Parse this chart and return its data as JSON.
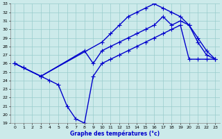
{
  "line1_x": [
    0,
    1,
    3,
    10,
    11,
    12,
    13,
    14,
    15,
    16,
    17,
    18,
    19,
    20,
    21,
    22,
    23
  ],
  "line1_y": [
    26,
    25.5,
    24.5,
    28.5,
    29.5,
    30.5,
    31.5,
    32.0,
    32.5,
    33.0,
    32.5,
    32.0,
    31.5,
    30.5,
    28.5,
    27.0,
    26.5
  ],
  "line2_x": [
    0,
    3,
    8,
    9,
    10,
    11,
    12,
    13,
    14,
    15,
    16,
    17,
    18,
    19,
    20,
    21,
    22,
    23
  ],
  "line2_y": [
    26.0,
    24.5,
    27.5,
    26.0,
    27.5,
    28.0,
    28.5,
    29.0,
    29.5,
    30.0,
    30.5,
    31.5,
    30.5,
    31.0,
    30.5,
    29.0,
    27.5,
    26.5
  ],
  "line3_x": [
    0,
    1,
    3,
    4,
    5,
    6,
    7,
    8,
    9,
    10,
    11,
    12,
    13,
    14,
    15,
    16,
    17,
    18,
    19,
    20,
    21,
    22,
    23
  ],
  "line3_y": [
    26.0,
    25.5,
    24.5,
    24.0,
    23.5,
    21.0,
    19.5,
    19.0,
    24.5,
    26.0,
    26.5,
    27.0,
    27.5,
    28.0,
    28.5,
    29.0,
    29.5,
    30.0,
    30.5,
    26.5,
    26.5,
    26.5,
    26.5
  ],
  "line_color": "#0000cc",
  "bg_color": "#cceaea",
  "grid_color": "#99cccc",
  "xlabel": "Graphe des températures (°c)",
  "ylim": [
    19,
    33
  ],
  "xlim": [
    -0.5,
    23.5
  ],
  "yticks": [
    19,
    20,
    21,
    22,
    23,
    24,
    25,
    26,
    27,
    28,
    29,
    30,
    31,
    32,
    33
  ],
  "xticks": [
    0,
    1,
    2,
    3,
    4,
    5,
    6,
    7,
    8,
    9,
    10,
    11,
    12,
    13,
    14,
    15,
    16,
    17,
    18,
    19,
    20,
    21,
    22,
    23
  ],
  "linewidth": 1.0
}
